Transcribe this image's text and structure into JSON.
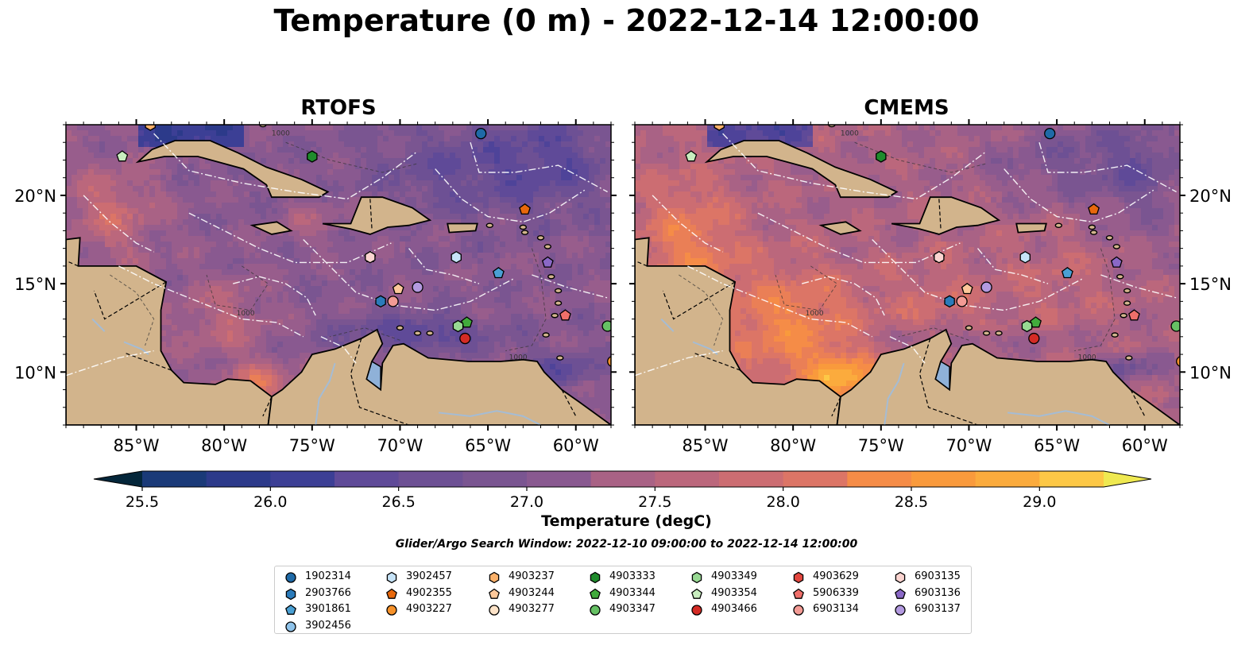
{
  "title": "Temperature (0 m) - 2022-12-14 12:00:00",
  "panels": [
    {
      "title": "RTOFS",
      "style": "rtofs"
    },
    {
      "title": "CMEMS",
      "style": "cmems"
    }
  ],
  "axes": {
    "lon_ticks": [
      "85°W",
      "80°W",
      "75°W",
      "70°W",
      "65°W",
      "60°W"
    ],
    "lat_ticks": [
      "20°N",
      "15°N",
      "10°N"
    ],
    "lon_range": [
      -89,
      -58
    ],
    "lat_range": [
      7,
      24
    ]
  },
  "colorbar": {
    "label": "Temperature (degC)",
    "min": 25.25,
    "max": 29.25,
    "ticks": [
      "25.5",
      "26.0",
      "26.5",
      "27.0",
      "27.5",
      "28.0",
      "28.5",
      "29.0"
    ],
    "colors": [
      "#04263a",
      "#0a3057",
      "#1a3a78",
      "#2c3a8a",
      "#3c3f95",
      "#4e4399",
      "#5f4a98",
      "#6d5094",
      "#7a5591",
      "#895990",
      "#985d8c",
      "#a96285",
      "#bb677c",
      "#cc6d72",
      "#dc7566",
      "#ea7f56",
      "#f58c47",
      "#f99a3c",
      "#fbab3d",
      "#fdc846",
      "#efe951"
    ]
  },
  "contour_label": "1000",
  "search_window": "Glider/Argo Search Window: 2022-12-10 09:00:00 to 2022-12-14 12:00:00",
  "legend": [
    {
      "id": "1902314",
      "marker": "circle",
      "color": "#1f6aa7"
    },
    {
      "id": "2903766",
      "marker": "hexagon",
      "color": "#2b7bba"
    },
    {
      "id": "3901861",
      "marker": "pentagon",
      "color": "#4aa0d4"
    },
    {
      "id": "3902456",
      "marker": "circle",
      "color": "#8fc3ea"
    },
    {
      "id": "3902457",
      "marker": "hexagon",
      "color": "#c6e3f7"
    },
    {
      "id": "4902355",
      "marker": "pentagon",
      "color": "#e8680c"
    },
    {
      "id": "4903227",
      "marker": "circle",
      "color": "#f7922a"
    },
    {
      "id": "4903237",
      "marker": "hexagon",
      "color": "#fbb16a"
    },
    {
      "id": "4903244",
      "marker": "pentagon",
      "color": "#fdc89a"
    },
    {
      "id": "4903277",
      "marker": "circle",
      "color": "#fde3c8"
    },
    {
      "id": "4903333",
      "marker": "hexagon",
      "color": "#1f8b2c"
    },
    {
      "id": "4903344",
      "marker": "pentagon",
      "color": "#41ab3c"
    },
    {
      "id": "4903347",
      "marker": "circle",
      "color": "#66c164"
    },
    {
      "id": "4903349",
      "marker": "hexagon",
      "color": "#98d993"
    },
    {
      "id": "4903354",
      "marker": "pentagon",
      "color": "#c8edbf"
    },
    {
      "id": "4903466",
      "marker": "circle",
      "color": "#d42b25"
    },
    {
      "id": "4903629",
      "marker": "hexagon",
      "color": "#e3473f"
    },
    {
      "id": "5906339",
      "marker": "pentagon",
      "color": "#ef6f6a"
    },
    {
      "id": "6903134",
      "marker": "circle",
      "color": "#f39b95"
    },
    {
      "id": "6903135",
      "marker": "hexagon",
      "color": "#fbd4d0"
    },
    {
      "id": "6903136",
      "marker": "pentagon",
      "color": "#8a68c6"
    },
    {
      "id": "6903137",
      "marker": "circle",
      "color": "#b39ae0"
    }
  ],
  "floats": [
    {
      "id": "1902314",
      "lon": -65.4,
      "lat": 23.5
    },
    {
      "id": "4903237",
      "lon": -84.2,
      "lat": 24.0
    },
    {
      "id": "4903354",
      "lon": -85.8,
      "lat": 22.2
    },
    {
      "id": "4903333",
      "lon": -75.0,
      "lat": 22.2
    },
    {
      "id": "4902355",
      "lon": -62.9,
      "lat": 19.2
    },
    {
      "id": "6903136",
      "lon": -71.7,
      "lat": 16.5
    },
    {
      "id": "6903135",
      "lon": -71.7,
      "lat": 16.5
    },
    {
      "id": "3902457",
      "lon": -66.8,
      "lat": 16.5
    },
    {
      "id": "6903136",
      "lon": -61.6,
      "lat": 16.2
    },
    {
      "id": "3901861",
      "lon": -64.4,
      "lat": 15.6
    },
    {
      "id": "6903137",
      "lon": -69.0,
      "lat": 14.8
    },
    {
      "id": "4903244",
      "lon": -70.1,
      "lat": 14.7
    },
    {
      "id": "6903134",
      "lon": -70.4,
      "lat": 14.0
    },
    {
      "id": "2903766",
      "lon": -71.1,
      "lat": 14.0
    },
    {
      "id": "5906339",
      "lon": -60.6,
      "lat": 13.2
    },
    {
      "id": "4903344",
      "lon": -66.2,
      "lat": 12.8
    },
    {
      "id": "4903349",
      "lon": -66.7,
      "lat": 12.6
    },
    {
      "id": "4903347",
      "lon": -58.2,
      "lat": 12.6
    },
    {
      "id": "4903466",
      "lon": -66.3,
      "lat": 11.9
    },
    {
      "id": "4903227",
      "lon": -57.9,
      "lat": 10.6
    }
  ]
}
